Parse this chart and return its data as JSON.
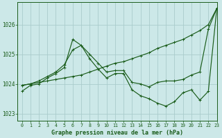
{
  "background_color": "#cce8e8",
  "grid_color": "#aacccc",
  "line_color": "#1a5c1a",
  "title": "Graphe pression niveau de la mer (hPa)",
  "xlim": [
    -0.5,
    23
  ],
  "ylim": [
    1022.75,
    1026.75
  ],
  "yticks": [
    1023,
    1024,
    1025,
    1026
  ],
  "xticks": [
    0,
    1,
    2,
    3,
    4,
    5,
    6,
    7,
    8,
    9,
    10,
    11,
    12,
    13,
    14,
    15,
    16,
    17,
    18,
    19,
    20,
    21,
    22,
    23
  ],
  "series": [
    {
      "x": [
        0,
        1,
        2,
        3,
        4,
        5,
        6,
        7,
        8,
        9,
        10,
        11,
        12,
        13,
        14,
        15,
        16,
        17,
        18,
        19,
        20,
        21,
        22,
        23
      ],
      "y": [
        1023.95,
        1024.0,
        1024.05,
        1024.1,
        1024.15,
        1024.2,
        1024.25,
        1024.3,
        1024.4,
        1024.5,
        1024.6,
        1024.7,
        1024.75,
        1024.85,
        1024.95,
        1025.05,
        1025.2,
        1025.3,
        1025.4,
        1025.5,
        1025.65,
        1025.8,
        1026.0,
        1026.55
      ]
    },
    {
      "x": [
        0,
        1,
        2,
        3,
        4,
        5,
        6,
        7,
        8,
        9,
        10,
        11,
        12,
        13,
        14,
        15,
        16,
        17,
        18,
        19,
        20,
        21,
        22,
        23
      ],
      "y": [
        1023.95,
        1024.0,
        1024.1,
        1024.25,
        1024.4,
        1024.65,
        1025.15,
        1025.3,
        1025.0,
        1024.7,
        1024.4,
        1024.45,
        1024.45,
        1024.05,
        1024.0,
        1023.9,
        1024.05,
        1024.1,
        1024.1,
        1024.15,
        1024.3,
        1024.4,
        1025.85,
        1026.55
      ]
    },
    {
      "x": [
        0,
        1,
        2,
        3,
        4,
        5,
        6,
        7,
        8,
        9,
        10,
        11,
        12,
        13,
        14,
        15,
        16,
        17,
        18,
        19,
        20,
        21,
        22,
        23
      ],
      "y": [
        1023.75,
        1023.95,
        1024.0,
        1024.2,
        1024.35,
        1024.55,
        1025.5,
        1025.3,
        1024.85,
        1024.5,
        1024.2,
        1024.35,
        1024.35,
        1023.8,
        1023.6,
        1023.5,
        1023.35,
        1023.25,
        1023.4,
        1023.7,
        1023.8,
        1023.45,
        1023.75,
        1026.55
      ]
    }
  ]
}
